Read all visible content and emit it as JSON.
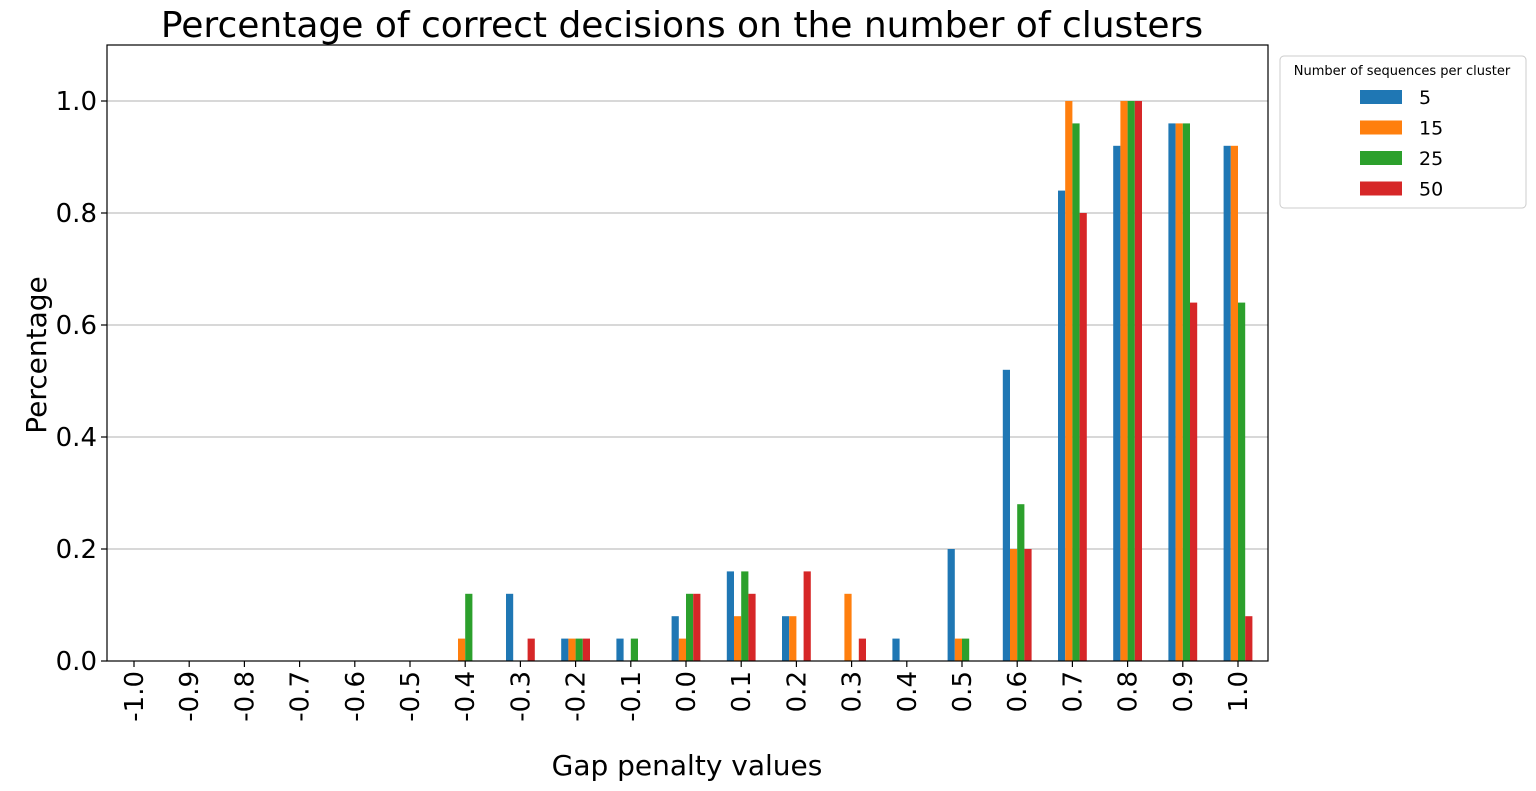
{
  "chart_data": {
    "type": "bar",
    "title": "Percentage of correct decisions on the number of clusters",
    "xlabel": "Gap penalty values",
    "ylabel": "Percentage",
    "ylim": [
      0,
      1.1
    ],
    "yticks": [
      "0.0",
      "0.2",
      "0.4",
      "0.6",
      "0.8",
      "1.0"
    ],
    "grid": "y",
    "categories": [
      "-1.0",
      "-0.9",
      "-0.8",
      "-0.7",
      "-0.6",
      "-0.5",
      "-0.4",
      "-0.3",
      "-0.2",
      "-0.1",
      "0.0",
      "0.1",
      "0.2",
      "0.3",
      "0.4",
      "0.5",
      "0.6",
      "0.7",
      "0.8",
      "0.9",
      "1.0"
    ],
    "legend": {
      "title": "Number of sequences per cluster",
      "placement": "outside top-right"
    },
    "series": [
      {
        "name": "5",
        "color": "#1f77b4",
        "values": [
          0,
          0,
          0,
          0,
          0,
          0,
          0,
          0.12,
          0.04,
          0.04,
          0.08,
          0.16,
          0.08,
          0,
          0.04,
          0.2,
          0.52,
          0.84,
          0.92,
          0.96,
          0.92
        ]
      },
      {
        "name": "15",
        "color": "#ff7f0e",
        "values": [
          0,
          0,
          0,
          0,
          0,
          0,
          0.04,
          0,
          0.04,
          0,
          0.04,
          0.08,
          0.08,
          0.12,
          0,
          0.04,
          0.2,
          1.0,
          1.0,
          0.96,
          0.92
        ]
      },
      {
        "name": "25",
        "color": "#2ca02c",
        "values": [
          0,
          0,
          0,
          0,
          0,
          0,
          0.12,
          0,
          0.04,
          0.04,
          0.12,
          0.16,
          0,
          0,
          0,
          0.04,
          0.28,
          0.96,
          1.0,
          0.96,
          0.64
        ]
      },
      {
        "name": "50",
        "color": "#d62728",
        "values": [
          0,
          0,
          0,
          0,
          0,
          0,
          0,
          0.04,
          0.04,
          0,
          0.12,
          0.12,
          0.16,
          0.04,
          0,
          0,
          0.2,
          0.8,
          1.0,
          0.64,
          0.08
        ]
      }
    ]
  }
}
